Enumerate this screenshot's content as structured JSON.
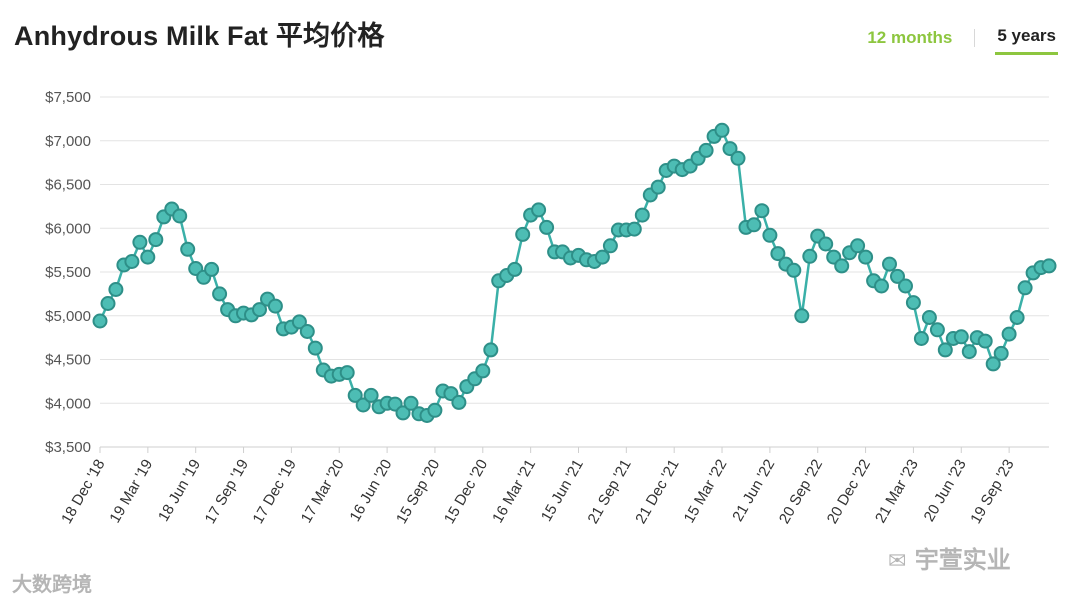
{
  "header": {
    "title": "Anhydrous Milk Fat 平均价格",
    "tabs": [
      {
        "label": "12 months",
        "active": false
      },
      {
        "label": "5 years",
        "active": true
      }
    ]
  },
  "watermarks": {
    "bottom_left": "大数跨境",
    "bottom_right": "宇萱实业"
  },
  "colors": {
    "line": "#3ab0a8",
    "marker_fill": "#4dbdb4",
    "marker_stroke": "#2e8f88",
    "grid": "#e3e3e3",
    "accent": "#8dc63f"
  },
  "chart_data": {
    "type": "line",
    "title": "Anhydrous Milk Fat 平均价格",
    "xlabel": "",
    "ylabel": "",
    "ylim": [
      3500,
      7500
    ],
    "yticks": [
      3500,
      4000,
      4500,
      5000,
      5500,
      6000,
      6500,
      7000,
      7500
    ],
    "ytick_labels": [
      "$3,500",
      "$4,000",
      "$4,500",
      "$5,000",
      "$5,500",
      "$6,000",
      "$6,500",
      "$7,000",
      "$7,500"
    ],
    "grid": true,
    "x_tick_labels": [
      "18 Dec '18",
      "19 Mar '19",
      "18 Jun '19",
      "17 Sep '19",
      "17 Dec '19",
      "17 Mar '20",
      "16 Jun '20",
      "15 Sep '20",
      "15 Dec '20",
      "16 Mar '21",
      "15 Jun '21",
      "21 Sep '21",
      "21 Dec '21",
      "15 Mar '22",
      "21 Jun '22",
      "20 Sep '22",
      "20 Dec '22",
      "21 Mar '23",
      "20 Jun '23",
      "19 Sep '23"
    ],
    "x_tick_index": [
      0,
      6,
      12,
      18,
      24,
      30,
      36,
      42,
      48,
      54,
      60,
      66,
      72,
      78,
      84,
      90,
      96,
      102,
      108,
      114
    ],
    "series": [
      {
        "values": [
          4940,
          5140,
          5300,
          5580,
          5620,
          5840,
          5670,
          5870,
          6130,
          6220,
          6140,
          5760,
          5540,
          5440,
          5530,
          5250,
          5070,
          5000,
          5030,
          5010,
          5070,
          5190,
          5110,
          4850,
          4870,
          4930,
          4820,
          4630,
          4380,
          4310,
          4330,
          4350,
          4090,
          3980,
          4090,
          3960,
          4000,
          3990,
          3890,
          4000,
          3880,
          3860,
          3920,
          4140,
          4110,
          4010,
          4190,
          4280,
          4370,
          4610,
          5400,
          5460,
          5530,
          5930,
          6150,
          6210,
          6010,
          5730,
          5730,
          5660,
          5690,
          5640,
          5620,
          5670,
          5800,
          5980,
          5980,
          5990,
          6150,
          6380,
          6470,
          6660,
          6710,
          6670,
          6710,
          6800,
          6890,
          7050,
          7120,
          6910,
          6800,
          6010,
          6040,
          6200,
          5920,
          5710,
          5590,
          5520,
          5000,
          5680,
          5910,
          5820,
          5670,
          5570,
          5720,
          5800,
          5670,
          5400,
          5340,
          5590,
          5450,
          5340,
          5150,
          4740,
          4980,
          4840,
          4610,
          4740,
          4760,
          4590,
          4750,
          4710,
          4450,
          4570,
          4790,
          4980,
          5320,
          5490,
          5550,
          5570
        ]
      }
    ]
  }
}
